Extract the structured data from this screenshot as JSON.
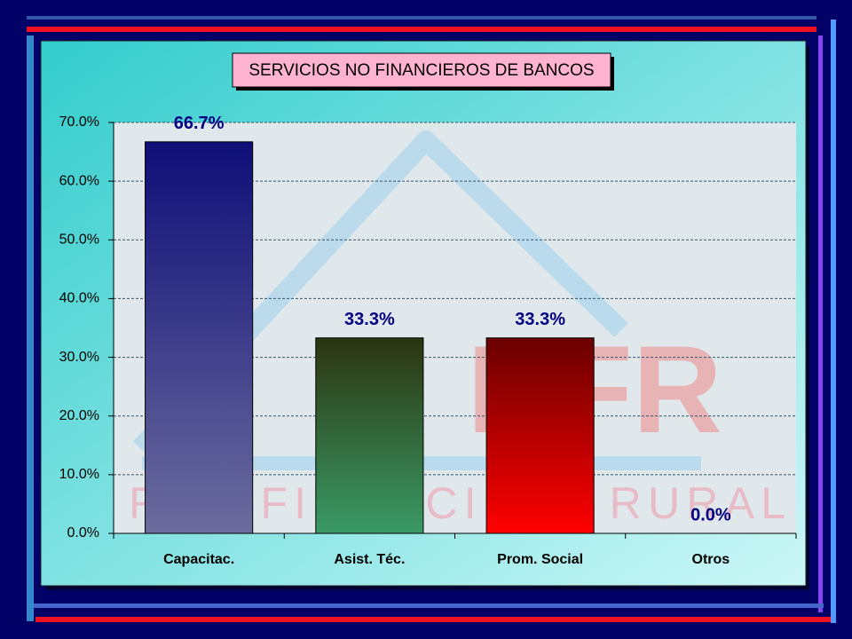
{
  "chart_data": {
    "type": "bar",
    "title": "SERVICIOS NO FINANCIEROS DE BANCOS",
    "categories": [
      "Capacitac.",
      "Asist. Téc.",
      "Prom. Social",
      "Otros"
    ],
    "values": [
      66.7,
      33.3,
      33.3,
      0
    ],
    "value_labels": [
      "66.7%",
      "33.3%",
      "33.3%",
      "0.0%"
    ],
    "colors": [
      [
        "#0e0e78",
        "#6c6c9e"
      ],
      [
        "#2c3410",
        "#3a9a66"
      ],
      [
        "#6a0000",
        "#ff0000"
      ],
      [
        "#000080",
        "#000080"
      ]
    ],
    "ylim": [
      0,
      70
    ],
    "yticks": [
      {
        "value": 0,
        "label": "0.0%"
      },
      {
        "value": 10,
        "label": "10.0%"
      },
      {
        "value": 20,
        "label": "20.0%"
      },
      {
        "value": 30,
        "label": "30.0%"
      },
      {
        "value": 40,
        "label": "40.0%"
      },
      {
        "value": 50,
        "label": "50.0%"
      },
      {
        "value": 60,
        "label": "60.0%"
      },
      {
        "value": 70,
        "label": "70.0%"
      }
    ],
    "grid": true,
    "watermark": {
      "mark": "RFR",
      "text": "RED FINANCIERA RURAL"
    }
  }
}
